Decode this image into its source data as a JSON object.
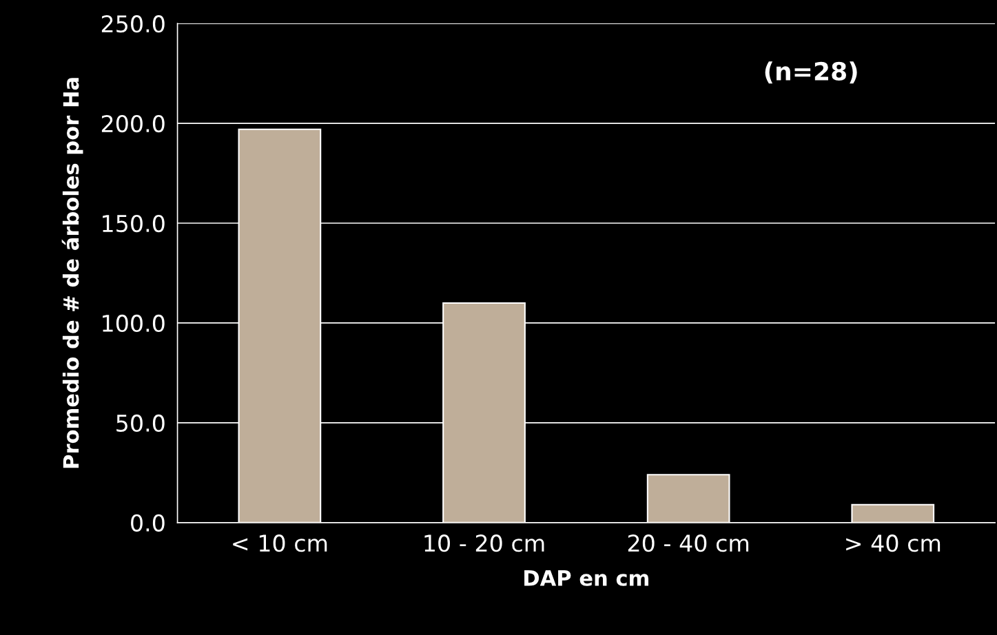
{
  "chart_data": {
    "type": "bar",
    "xlabel": "DAP en cm",
    "ylabel": "Promedio de # de árboles por Ha",
    "categories": [
      "< 10 cm",
      "10 - 20 cm",
      "20 - 40 cm",
      "> 40 cm"
    ],
    "values": [
      197,
      110,
      24,
      9
    ],
    "color": "#bfae99",
    "ylim": [
      0,
      250
    ],
    "yticks": [
      {
        "value": 0,
        "label": "0.0"
      },
      {
        "value": 50,
        "label": "50.0"
      },
      {
        "value": 100,
        "label": "100.0"
      },
      {
        "value": 150,
        "label": "150.0"
      },
      {
        "value": 200,
        "label": "200.0"
      },
      {
        "value": 250,
        "label": "250.0"
      }
    ],
    "grid": "y",
    "legend": false,
    "annotations": [
      "(n=28)"
    ]
  }
}
